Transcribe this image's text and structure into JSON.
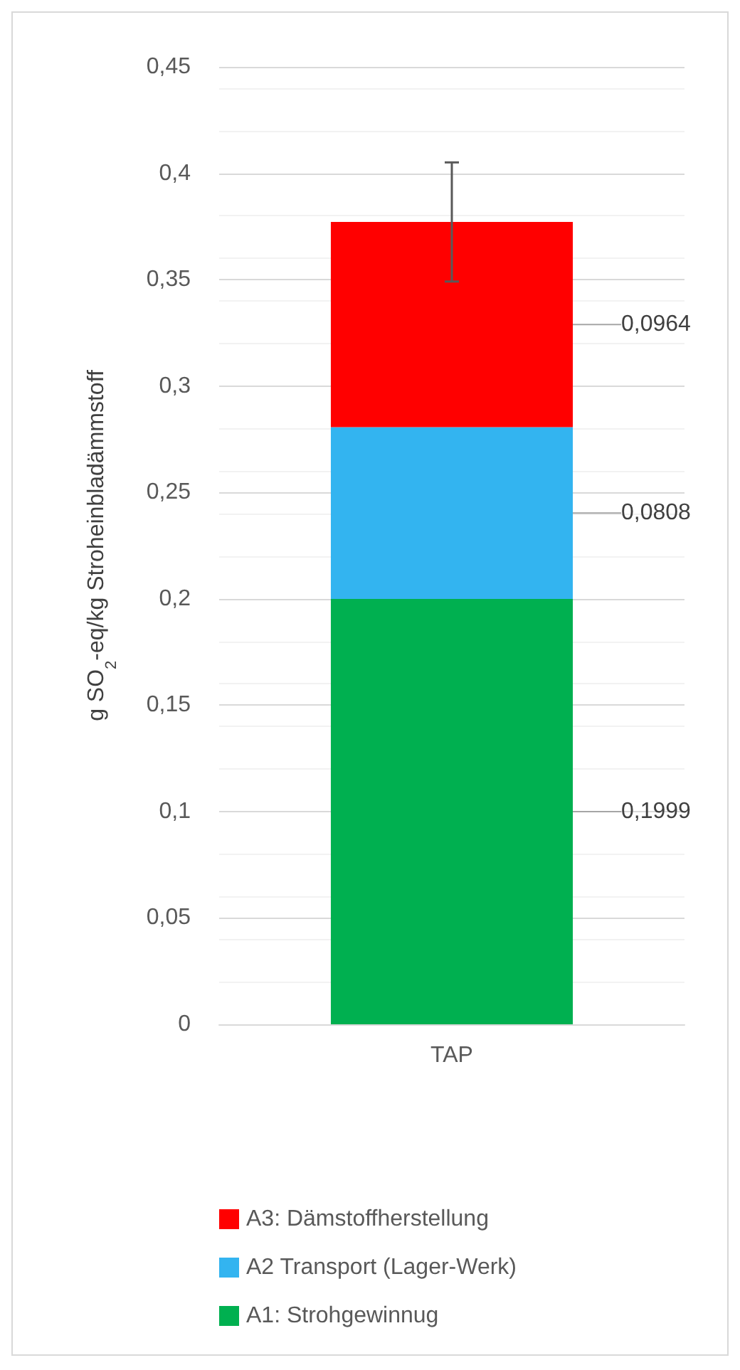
{
  "chart_data": {
    "type": "bar",
    "stacked": true,
    "categories": [
      "TAP"
    ],
    "ylabel": "g SO$_{2}$-eq/kg Stroheinbladämmstoff",
    "ylim": [
      0,
      0.45
    ],
    "yticks": [
      {
        "value": 0,
        "label": "0"
      },
      {
        "value": 0.05,
        "label": "0,05"
      },
      {
        "value": 0.1,
        "label": "0,1"
      },
      {
        "value": 0.15,
        "label": "0,15"
      },
      {
        "value": 0.2,
        "label": "0,2"
      },
      {
        "value": 0.25,
        "label": "0,25"
      },
      {
        "value": 0.3,
        "label": "0,3"
      },
      {
        "value": 0.35,
        "label": "0,35"
      },
      {
        "value": 0.4,
        "label": "0,4"
      },
      {
        "value": 0.45,
        "label": "0,45"
      }
    ],
    "grid": "y",
    "legend": "bottom",
    "series": [
      {
        "name": "A1: Strohgewinnug",
        "color": "#00b050",
        "values": [
          0.1999
        ],
        "value_labels": [
          "0,1999"
        ]
      },
      {
        "name": "A2 Transport (Lager-Werk)",
        "color": "#33b4f0",
        "values": [
          0.0808
        ],
        "value_labels": [
          "0,0808"
        ]
      },
      {
        "name": "A3: Dämstoffherstellung",
        "color": "#ff0000",
        "values": [
          0.0964
        ],
        "value_labels": [
          "0,0964"
        ],
        "errors": [
          0.028
        ]
      }
    ]
  }
}
